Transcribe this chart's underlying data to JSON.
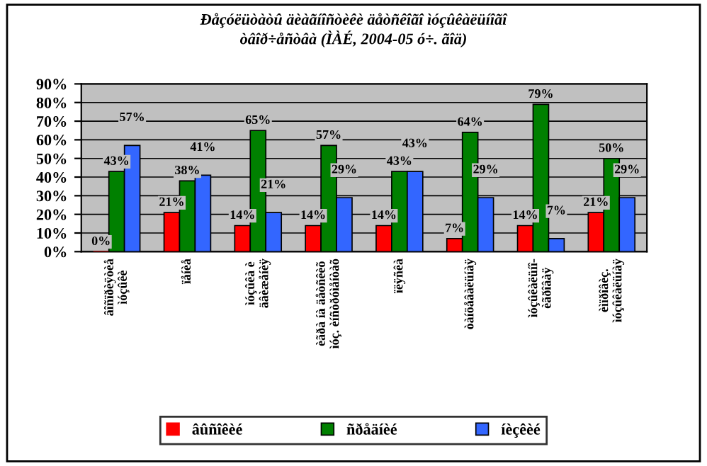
{
  "chart_data": {
    "type": "bar",
    "title": "Ðåçóëüòàòû äèàãíîñòèêè äåòñêîãî ìóçûêàëüíîãî\nòâîð÷åñòâà (ÌÀÉ, 2004-05 ó÷. ãîä)",
    "categories": [
      "âîñïðèÿòèå\nìóçûêè",
      "ïåíèå",
      "ìóçûêà è\näâèæåíèÿ",
      "èãðà íà äåòñêèõ\nìóç. èíñòðóìåíòàõ",
      "ïëÿñêà",
      "òàíöåâàëüíàÿ",
      "ìóçûêàëüíî-\nèãðîâàÿ",
      "èìïðîâèç.\nìóçûêàëüíàÿ"
    ],
    "series": [
      {
        "name": "âûñîêèé",
        "color": "#ff0000",
        "values": [
          0,
          21,
          14,
          14,
          14,
          7,
          14,
          21
        ],
        "value_labels": [
          "0%",
          "21%",
          "14%",
          "14%",
          "14%",
          "7%",
          "14%",
          "21%"
        ]
      },
      {
        "name": "ñðåäíèé",
        "color": "#008000",
        "values": [
          43,
          38,
          65,
          57,
          43,
          64,
          79,
          50
        ],
        "value_labels": [
          "43%",
          "38%",
          "65%",
          "57%",
          "43%",
          "64%",
          "79%",
          "50%"
        ]
      },
      {
        "name": "íèçêèé",
        "color": "#3366ff",
        "values": [
          57,
          41,
          21,
          29,
          43,
          29,
          7,
          29
        ],
        "value_labels": [
          "57%",
          "41%",
          "21%",
          "29%",
          "43%",
          "29%",
          "7%",
          "29%"
        ]
      }
    ],
    "ylim": [
      0,
      90
    ],
    "yticks": [
      {
        "value": 0,
        "label": "0%"
      },
      {
        "value": 10,
        "label": "10%"
      },
      {
        "value": 20,
        "label": "20%"
      },
      {
        "value": 30,
        "label": "30%"
      },
      {
        "value": 40,
        "label": "40%"
      },
      {
        "value": 50,
        "label": "50%"
      },
      {
        "value": 60,
        "label": "60%"
      },
      {
        "value": 70,
        "label": "70%"
      },
      {
        "value": 80,
        "label": "80%"
      },
      {
        "value": 90,
        "label": "90%"
      }
    ],
    "grid": "y",
    "legend": "bottom"
  }
}
